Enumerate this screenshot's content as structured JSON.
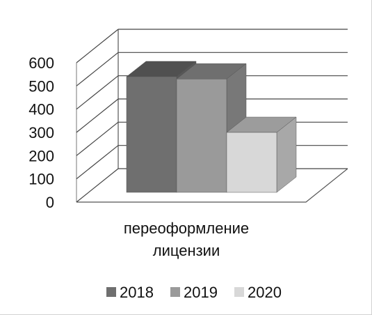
{
  "chart_data": {
    "type": "bar",
    "categories": [
      "переоформление лицензии"
    ],
    "category_label_lines": [
      "переоформление",
      "лицензии"
    ],
    "series": [
      {
        "name": "2018",
        "values": [
          540
        ],
        "color": "#6f6f6f"
      },
      {
        "name": "2019",
        "values": [
          530
        ],
        "color": "#9a9a9a"
      },
      {
        "name": "2020",
        "values": [
          300
        ],
        "color": "#d8d8d8"
      }
    ],
    "ylim": [
      0,
      600
    ],
    "yticks": [
      "0",
      "100",
      "200",
      "300",
      "400",
      "500",
      "600"
    ],
    "grid": true,
    "legend_position": "bottom",
    "style": "3d-clustered-column"
  }
}
